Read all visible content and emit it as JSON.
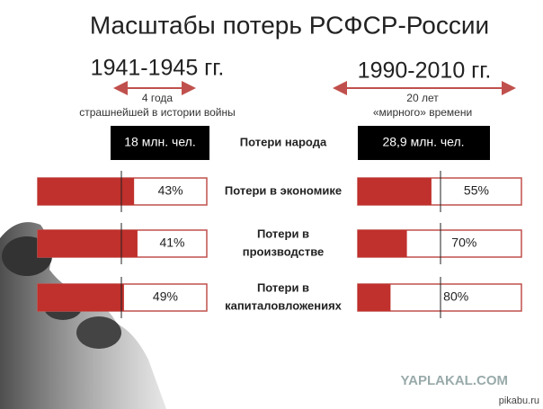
{
  "title": "Масштабы потерь РСФСР-России",
  "periods": [
    {
      "years": "1941-1945 гг.",
      "duration": "4 года",
      "note": "страшнейшей в истории войны",
      "people_loss": "18 млн. чел."
    },
    {
      "years": "1990-2010 гг.",
      "duration": "20 лет",
      "note": "«мирного» времени",
      "people_loss": "28,9 млн. чел."
    }
  ],
  "people_label": "Потери народа",
  "rows": [
    {
      "lines": [
        "Потери в экономике"
      ],
      "values": [
        43,
        55
      ],
      "value_labels": [
        "43%",
        "55%"
      ]
    },
    {
      "lines": [
        "Потери в",
        "производстве"
      ],
      "values": [
        41,
        70
      ],
      "value_labels": [
        "41%",
        "70%"
      ]
    },
    {
      "lines": [
        "Потери в",
        "капиталовложениях"
      ],
      "values": [
        49,
        80
      ],
      "value_labels": [
        "49%",
        "80%"
      ]
    }
  ],
  "watermarks": [
    "YAPLAKAL.COM",
    "pikabu.ru"
  ]
}
